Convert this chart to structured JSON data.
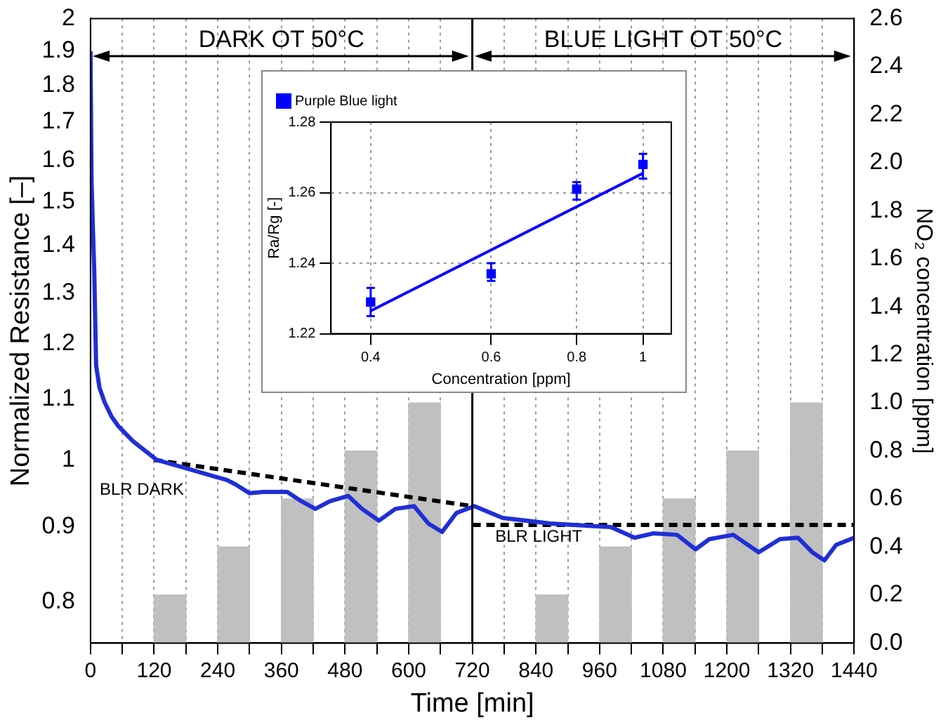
{
  "chart_data": [
    {
      "type": "line",
      "xlabel": "Time [min]",
      "ylabel": "Normalized Resistance [–]",
      "y2label": "NO₂ concentration [ppm]",
      "log": "y",
      "grid": "x",
      "legend": false,
      "marker": "none",
      "xlim": [
        0,
        1440
      ],
      "xticks": [
        0,
        {
          "value": 60,
          "label": null
        },
        120,
        {
          "value": 180,
          "label": null
        },
        240,
        {
          "value": 300,
          "label": null
        },
        360,
        {
          "value": 420,
          "label": null
        },
        480,
        {
          "value": 540,
          "label": null
        },
        600,
        {
          "value": 660,
          "label": null
        },
        720,
        {
          "value": 780,
          "label": null
        },
        840,
        {
          "value": 900,
          "label": null
        },
        960,
        {
          "value": 1020,
          "label": null
        },
        1080,
        {
          "value": 1140,
          "label": null
        },
        1200,
        {
          "value": 1260,
          "label": null
        },
        1320,
        {
          "value": 1380,
          "label": null
        },
        1440
      ],
      "ylim": [
        0.75,
        2
      ],
      "yticks": [
        0.8,
        0.9,
        1,
        1.1,
        1.2,
        1.3,
        1.4,
        1.5,
        1.6,
        1.7,
        1.8,
        1.9,
        2
      ],
      "y2lim": [
        0,
        2.6
      ],
      "y2ticks": [
        {
          "value": 0,
          "label": "0.0"
        },
        0.2,
        0.4,
        0.6,
        0.8,
        {
          "value": 1,
          "label": "1.0"
        },
        1.2,
        1.4,
        1.6,
        1.8,
        {
          "value": 2,
          "label": "2.0"
        },
        2.2,
        2.4,
        2.6
      ],
      "ref_lines": [
        {
          "axis": "x",
          "value": 720,
          "color": "#000000"
        }
      ],
      "annotations": [
        "DARK OT 50°C",
        "BLUE LIGHT OT 50°C",
        "BLR DARK",
        "BLR LIGHT"
      ],
      "series": [
        {
          "type": "bar",
          "axis": "y2",
          "color": "#c0c0c0",
          "x": [
            150,
            270,
            390,
            510,
            630,
            870,
            990,
            1110,
            1230,
            1350
          ],
          "values": [
            0.2,
            0.4,
            0.6,
            0.8,
            1.0,
            0.2,
            0.4,
            0.6,
            0.8,
            1.0
          ]
        },
        {
          "color": "#1f2fd6",
          "x": [
            0,
            2,
            5,
            7,
            10.6,
            17,
            26.5,
            40,
            53,
            80,
            125,
            167,
            239,
            257,
            274,
            300,
            326,
            371,
            398,
            424,
            451,
            486,
            512,
            544,
            575,
            610,
            637,
            663,
            690,
            724,
            777,
            867,
            955,
            981,
            1026,
            1061,
            1106,
            1141,
            1167,
            1212,
            1260,
            1300,
            1334,
            1361,
            1384,
            1406,
            1440
          ],
          "values": [
            1.9,
            1.55,
            1.42,
            1.35,
            1.16,
            1.12,
            1.095,
            1.07,
            1.054,
            1.03,
            1.0,
            0.99,
            0.973,
            0.969,
            0.962,
            0.949,
            0.951,
            0.951,
            0.937,
            0.926,
            0.937,
            0.945,
            0.926,
            0.909,
            0.926,
            0.93,
            0.905,
            0.893,
            0.92,
            0.93,
            0.913,
            0.905,
            0.901,
            0.9,
            0.885,
            0.891,
            0.889,
            0.869,
            0.883,
            0.889,
            0.865,
            0.883,
            0.885,
            0.865,
            0.854,
            0.875,
            0.885
          ]
        },
        {
          "color": "#000000",
          "line_style": "dashed",
          "x": [
            120,
            720
          ],
          "values": [
            1.0,
            0.93
          ]
        },
        {
          "color": "#000000",
          "line_style": "dashed",
          "x": [
            720,
            1440
          ],
          "values": [
            0.903,
            0.903
          ]
        }
      ]
    },
    {
      "type": "scatter",
      "xlabel": "Concentration [ppm]",
      "ylabel": "Ra/Rg [-]",
      "log": "x",
      "grid": true,
      "legend": "top left",
      "marker": "square",
      "xlim": [
        0.35,
        1.1
      ],
      "xticks": [
        0.4,
        0.6,
        0.8,
        1
      ],
      "ylim": [
        1.22,
        1.28
      ],
      "yticks": [
        1.22,
        1.24,
        1.26,
        1.28
      ],
      "series": [
        {
          "name": "Purple Blue light",
          "color": "#0000ff",
          "x": [
            0.4,
            0.6,
            0.8,
            1
          ],
          "values": [
            1.229,
            1.237,
            1.261,
            1.268
          ],
          "errors": [
            [
              1.225,
              1.233
            ],
            [
              1.235,
              1.24
            ],
            [
              1.258,
              1.263
            ],
            [
              1.264,
              1.271
            ]
          ]
        },
        {
          "type": "line",
          "color": "#0000ff",
          "marker": "none",
          "x": [
            0.4,
            1
          ],
          "values": [
            1.2265,
            1.2655
          ]
        }
      ]
    }
  ]
}
